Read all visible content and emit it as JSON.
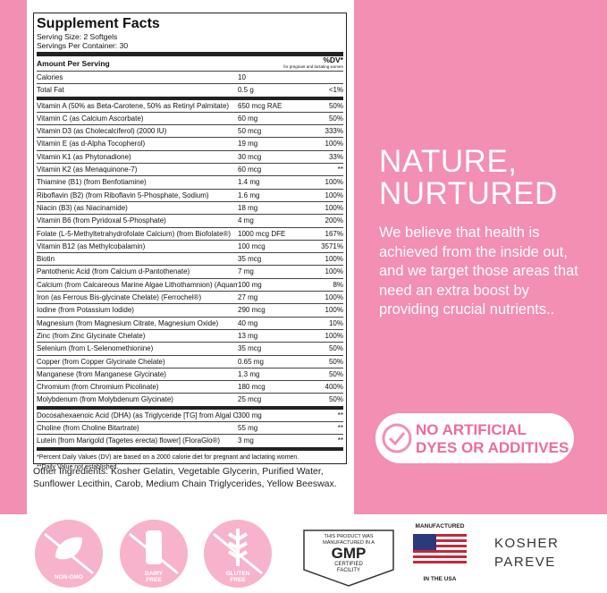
{
  "facts": {
    "title": "Supplement Facts",
    "serving_size": "Serving Size: 2 Softgels",
    "servings_per_container": "Servings Per Container: 30",
    "amount_header": "Amount Per Serving",
    "dv_header": "%DV*",
    "dv_note": "for pregnant and lactating women",
    "rows": [
      [
        "Calories",
        "10",
        ""
      ],
      [
        "Total Fat",
        "0.5 g",
        "<1%"
      ],
      [
        "Vitamin A (50% as Beta-Carotene, 50% as Retinyl Palmitate)",
        "650 mcg RAE",
        "50%"
      ],
      [
        "Vitamin C (as Calcium Ascorbate)",
        "60 mg",
        "50%"
      ],
      [
        "Vitamin D3 (as Cholecalciferol) (2000 IU)",
        "50 mcg",
        "333%"
      ],
      [
        "Vitamin E (as d-Alpha Tocopherol)",
        "19 mg",
        "100%"
      ],
      [
        "Vitamin K1 (as Phytonadione)",
        "30 mcg",
        "33%"
      ],
      [
        "Vitamin K2 (as Menaquinone-7)",
        "60 mcg",
        "**"
      ],
      [
        "Thiamine (B1) (from Benfotiamine)",
        "1.4 mg",
        "100%"
      ],
      [
        "Riboflavin (B2) (from Riboflavin 5-Phosphate, Sodium)",
        "1.6 mg",
        "100%"
      ],
      [
        "Niacin (B3) (as Niacinamide)",
        "18 mg",
        "100%"
      ],
      [
        "Vitamin B6 (from Pyridoxal 5-Phosphate)",
        "4 mg",
        "200%"
      ],
      [
        "Folate (L-5-Methyltetrahydrofolate Calcium) (from Biofolate®)",
        "1000 mcg DFE",
        "167%"
      ],
      [
        "Vitamin B12 (as Methylcobalamin)",
        "100 mcg",
        "3571%"
      ],
      [
        "Biotin",
        "35 mcg",
        "100%"
      ],
      [
        "Pantothenic Acid (from Calcium d-Pantothenate)",
        "7 mg",
        "100%"
      ],
      [
        "Calcium (from Calcareous Marine Algae Lithothamnion) (Aquamin®)",
        "100 mg",
        "8%"
      ],
      [
        "Iron (as Ferrous Bis-glycinate Chelate) (Ferrochel®)",
        "27 mg",
        "100%"
      ],
      [
        "Iodine (from Potassium Iodide)",
        "290 mcg",
        "100%"
      ],
      [
        "Magnesium (from Magnesium Citrate, Magnesium Oxide)",
        "40 mg",
        "10%"
      ],
      [
        "Zinc (from Zinc Glycinate Chelate)",
        "13 mg",
        "100%"
      ],
      [
        "Selenium (from L-Selenomethionine)",
        "35 mcg",
        "50%"
      ],
      [
        "Copper (from Copper Glycinate Chelate)",
        "0.65 mg",
        "50%"
      ],
      [
        "Manganese (from Manganese Glycinate)",
        "1.3 mg",
        "50%"
      ],
      [
        "Chromium (from Chromium Picolinate)",
        "180 mcg",
        "400%"
      ],
      [
        "Molybdenum (from Molybdenum Glycinate)",
        "25 mcg",
        "50%"
      ],
      [
        "Docosahexaenoic Acid (DHA) (as Triglyceride [TG] from Algal Oil)",
        "300 mg",
        "**"
      ],
      [
        "Choline (from Choline Bitartrate)",
        "55 mg",
        "**"
      ],
      [
        "Lutein [from Marigold (Tagetes erecta) flower] (FloraGlo®)",
        "3 mg",
        "**"
      ]
    ],
    "footnotes": [
      "*Percent Daily Values (DV) are based on a 2000 calorie diet for pregnant and lactating women.",
      "**Daily Value not established."
    ]
  },
  "other_ingredients": {
    "label": "Other Ingredients:",
    "text": "Kosher Gelatin, Vegetable Glycerin, Purified Water, Sunflower Lecithin, Carob, Medium Chain Triglycerides, Yellow Beeswax."
  },
  "headline": [
    "NATURE,",
    "NURTURED"
  ],
  "body": "We believe that health is achieved from the inside out, and we target those areas that need an extra boost by providing crucial nutrients..",
  "badge": [
    "NO ARTIFICIAL",
    "DYES OR ADDITIVES"
  ],
  "icons": [
    [
      "NON-GMO"
    ],
    [
      "DAIRY",
      "FREE"
    ],
    [
      "GLUTEN",
      "FREE"
    ]
  ],
  "gmp": {
    "top": "THIS PRODUCT WAS MANUFACTURED IN A",
    "mark": "GMP",
    "bottom": "CERTIFIED FACILITY"
  },
  "usa": {
    "top": "MANUFACTURED",
    "bottom": "IN THE USA"
  },
  "kosher": [
    "KOSHER",
    "PAREVE"
  ]
}
